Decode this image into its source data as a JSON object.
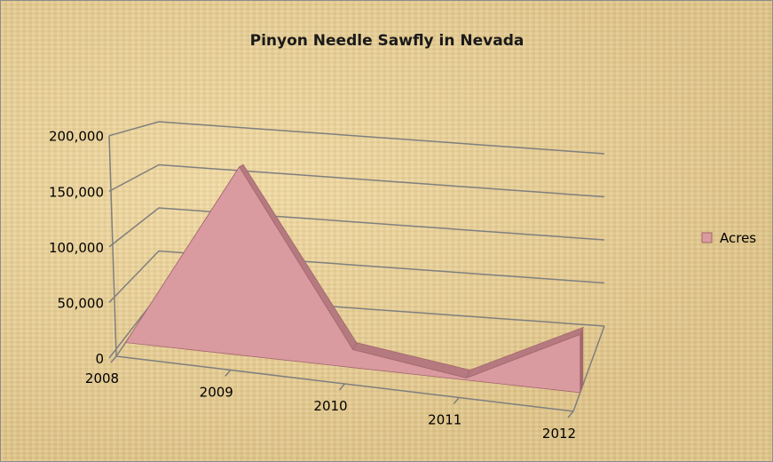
{
  "chart_data": {
    "type": "area",
    "title": "Pinyon Needle Sawfly in Nevada",
    "categories": [
      "2008",
      "2009",
      "2010",
      "2011",
      "2012"
    ],
    "series": [
      {
        "name": "Acres",
        "values": [
          0,
          178000,
          17000,
          2000,
          55000
        ]
      }
    ],
    "ylim": [
      0,
      200000
    ],
    "yticks": [
      "0",
      "50,000",
      "100,000",
      "150,000",
      "200,000"
    ],
    "grid": true,
    "legend_position": "right",
    "colors": {
      "area_front": "#d99aa0",
      "area_side": "#b57a80",
      "area_edge": "#a4676d",
      "grid": "#7f7f7f"
    }
  }
}
